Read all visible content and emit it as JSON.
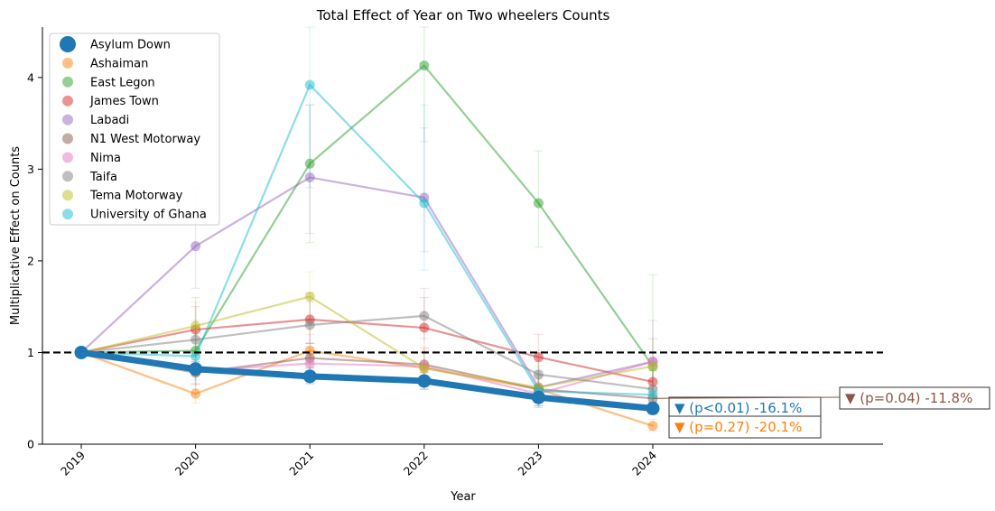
{
  "chart_data": {
    "type": "line",
    "title": "Total Effect of Year on Two wheelers Counts",
    "xlabel": "Year",
    "ylabel": "Multiplicative Effect on Counts",
    "categories": [
      "2019",
      "2020",
      "2021",
      "2022",
      "2023",
      "2024"
    ],
    "ylim": [
      0,
      4.55
    ],
    "yticks": [
      0,
      1,
      2,
      3,
      4
    ],
    "reference_line": 1,
    "legend_position": "top-left",
    "grid": false,
    "series": [
      {
        "name": "Asylum Down",
        "color": "#1f77b4",
        "highlight": true,
        "values": [
          1.0,
          0.82,
          0.74,
          0.69,
          0.51,
          0.39
        ],
        "ci_low": [
          1.0,
          0.75,
          0.66,
          0.6,
          0.42,
          0.33
        ],
        "ci_high": [
          1.0,
          0.9,
          0.83,
          0.78,
          0.6,
          0.46
        ]
      },
      {
        "name": "Ashaiman",
        "color": "#ff7f0e",
        "values": [
          1.0,
          0.55,
          1.02,
          0.83,
          0.6,
          0.2
        ],
        "ci_low": [
          1.0,
          0.45,
          0.85,
          0.68,
          0.48,
          0.15
        ],
        "ci_high": [
          1.0,
          0.66,
          1.2,
          1.0,
          0.74,
          0.27
        ]
      },
      {
        "name": "East Legon",
        "color": "#2ca02c",
        "values": [
          1.0,
          1.02,
          3.06,
          4.13,
          2.63,
          0.85
        ],
        "ci_low": [
          1.0,
          0.6,
          2.2,
          3.3,
          2.15,
          0.4
        ],
        "ci_high": [
          1.0,
          1.6,
          3.7,
          4.55,
          3.2,
          1.85
        ]
      },
      {
        "name": "James Town",
        "color": "#d62728",
        "values": [
          1.0,
          1.25,
          1.36,
          1.27,
          0.95,
          0.68
        ],
        "ci_low": [
          1.0,
          1.0,
          1.1,
          1.0,
          0.75,
          0.5
        ],
        "ci_high": [
          1.0,
          1.5,
          1.65,
          1.6,
          1.2,
          0.9
        ]
      },
      {
        "name": "Labadi",
        "color": "#9467bd",
        "values": [
          1.0,
          2.16,
          2.91,
          2.69,
          0.62,
          0.9
        ],
        "ci_low": [
          1.0,
          1.7,
          2.3,
          2.1,
          0.4,
          0.6
        ],
        "ci_high": [
          1.0,
          2.8,
          3.7,
          3.45,
          0.9,
          1.35
        ]
      },
      {
        "name": "N1 West Motorway",
        "color": "#8c564b",
        "values": [
          1.0,
          0.78,
          0.94,
          0.87,
          0.6,
          0.5
        ],
        "ci_low": [
          1.0,
          0.65,
          0.8,
          0.72,
          0.5,
          0.4
        ],
        "ci_high": [
          1.0,
          0.92,
          1.1,
          1.05,
          0.72,
          0.62
        ]
      },
      {
        "name": "Nima",
        "color": "#e377c2",
        "values": [
          1.0,
          0.8,
          0.88,
          0.85,
          0.55,
          0.9
        ],
        "ci_low": [
          1.0,
          0.66,
          0.72,
          0.7,
          0.42,
          0.7
        ],
        "ci_high": [
          1.0,
          0.97,
          1.05,
          1.02,
          0.7,
          1.15
        ]
      },
      {
        "name": "Taifa",
        "color": "#7f7f7f",
        "values": [
          1.0,
          1.14,
          1.3,
          1.4,
          0.76,
          0.6
        ],
        "ci_low": [
          1.0,
          0.95,
          1.1,
          1.15,
          0.58,
          0.45
        ],
        "ci_high": [
          1.0,
          1.35,
          1.55,
          1.7,
          0.98,
          0.8
        ]
      },
      {
        "name": "Tema Motorway",
        "color": "#bcbd22",
        "values": [
          1.0,
          1.29,
          1.61,
          0.83,
          0.62,
          0.85
        ],
        "ci_low": [
          1.0,
          1.05,
          1.35,
          0.65,
          0.45,
          0.62
        ],
        "ci_high": [
          1.0,
          1.55,
          1.88,
          1.05,
          0.85,
          1.15
        ]
      },
      {
        "name": "University of Ghana",
        "color": "#17becf",
        "values": [
          1.0,
          0.96,
          3.92,
          2.63,
          0.58,
          0.54
        ],
        "ci_low": [
          1.0,
          0.7,
          2.8,
          1.9,
          0.4,
          0.35
        ],
        "ci_high": [
          1.0,
          1.3,
          4.55,
          3.7,
          0.8,
          0.8
        ]
      }
    ],
    "annotations": [
      {
        "text": "▼ (p<0.01) -16.1%",
        "color": "#1f77b4",
        "series": "Asylum Down"
      },
      {
        "text": "▼ (p=0.27) -20.1%",
        "color": "#ff7f0e",
        "series": "Ashaiman"
      },
      {
        "text": "▼ (p=0.04) -11.8%",
        "color": "#8c564b",
        "series": "N1 West Motorway"
      }
    ]
  }
}
